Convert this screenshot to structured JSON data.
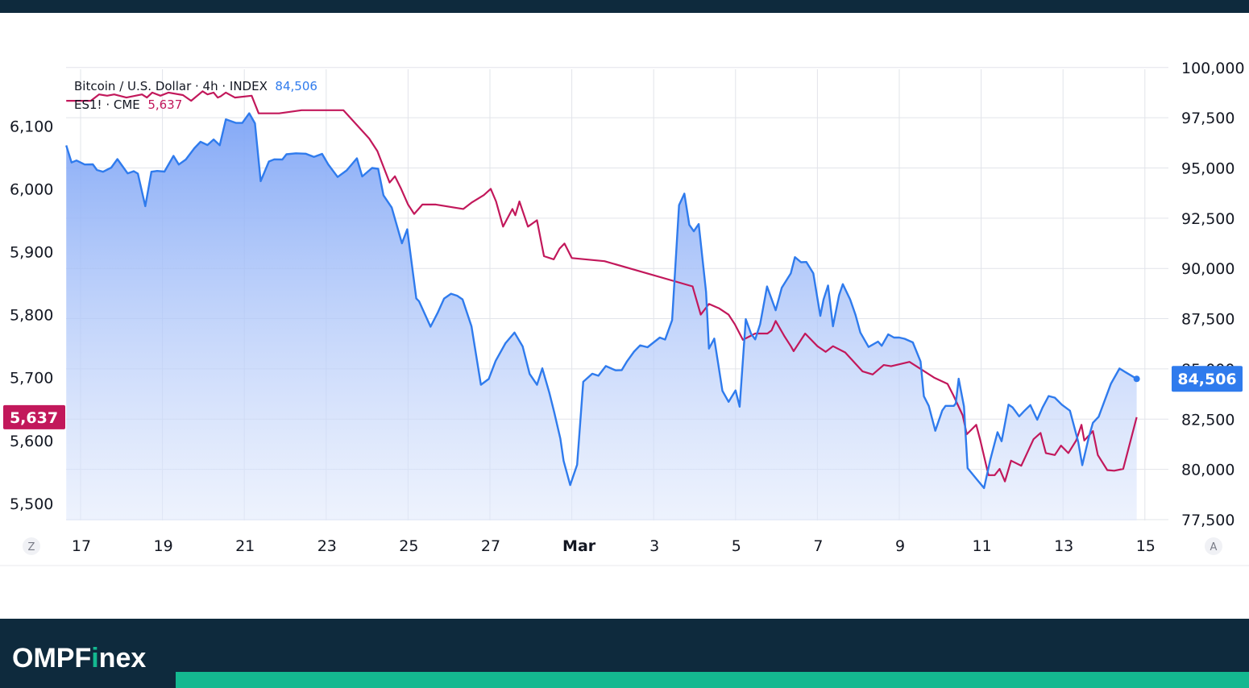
{
  "legend": {
    "btc_label": "Bitcoin / U.S. Dollar · 4h · INDEX",
    "btc_value": "84,506",
    "es_label": "ES1! · CME",
    "es_value": "5,637"
  },
  "badges": {
    "left_value": "5,637",
    "right_value": "84,506"
  },
  "corner_labels": {
    "left": "Z",
    "right": "A"
  },
  "brand": {
    "text_before": "OMPF",
    "text_i": "i",
    "text_after": "nex"
  },
  "colors": {
    "btc_line": "#2f7bed",
    "btc_fill_top": "#7da4f6",
    "es_line": "#c2185b",
    "header_footer": "#0e2a3d",
    "stripe": "#14b890",
    "brand_accent": "#14b890"
  },
  "chart_data": {
    "type": "area",
    "x_axis": {
      "tick_labels": [
        "17",
        "19",
        "21",
        "23",
        "25",
        "27",
        "Mar",
        "3",
        "5",
        "7",
        "9",
        "11",
        "13",
        "15"
      ],
      "ticks_day_index": [
        0,
        2,
        4,
        6,
        8,
        10,
        12,
        14,
        16,
        18,
        20,
        22,
        24,
        26
      ],
      "first_day_index": -0.35,
      "last_day_index": 25.8
    },
    "y_left": {
      "tick_labels": [
        "6,100",
        "6,000",
        "5,900",
        "5,800",
        "5,700",
        "5,600",
        "5,500"
      ],
      "ticks": [
        6100,
        6000,
        5900,
        5800,
        5700,
        5600,
        5500
      ],
      "range": [
        5473,
        6190
      ]
    },
    "y_right": {
      "tick_labels": [
        "100,000",
        "97,500",
        "95,000",
        "92,500",
        "90,000",
        "87,500",
        "85,000",
        "82,500",
        "80,000",
        "77,500"
      ],
      "ticks": [
        100000,
        97500,
        95000,
        92500,
        90000,
        87500,
        85000,
        82500,
        80000,
        77500
      ],
      "range": [
        77460,
        99910
      ]
    },
    "grid": true,
    "series": [
      {
        "name": "Bitcoin / U.S. Dollar · 4h · INDEX",
        "axis": "right",
        "style": "area",
        "x": [
          -0.35,
          -0.22,
          -0.1,
          0.1,
          0.3,
          0.4,
          0.55,
          0.75,
          0.9,
          1.15,
          1.3,
          1.4,
          1.58,
          1.73,
          1.87,
          2.05,
          2.27,
          2.4,
          2.57,
          2.78,
          2.93,
          3.1,
          3.25,
          3.4,
          3.55,
          3.8,
          3.95,
          4.12,
          4.26,
          4.4,
          4.6,
          4.73,
          4.93,
          5.03,
          5.26,
          5.5,
          5.7,
          5.9,
          6.05,
          6.28,
          6.5,
          6.75,
          6.88,
          7.12,
          7.27,
          7.4,
          7.6,
          7.85,
          7.98,
          8.2,
          8.27,
          8.55,
          8.72,
          8.88,
          9.05,
          9.2,
          9.33,
          9.55,
          9.78,
          9.97,
          10.14,
          10.38,
          10.6,
          10.8,
          10.97,
          11.15,
          11.28,
          11.45,
          11.57,
          11.72,
          11.8,
          11.96,
          12.13,
          12.28,
          12.5,
          12.65,
          12.83,
          13.07,
          13.22,
          13.35,
          13.52,
          13.67,
          13.85,
          14.15,
          14.28,
          14.45,
          14.62,
          14.75,
          14.87,
          14.98,
          15.1,
          15.28,
          15.35,
          15.48,
          15.68,
          15.83,
          16.0,
          16.1,
          16.25,
          16.38,
          16.48,
          16.6,
          16.77,
          16.98,
          17.13,
          17.35,
          17.45,
          17.6,
          17.73,
          17.9,
          18.07,
          18.15,
          18.26,
          18.38,
          18.53,
          18.62,
          18.8,
          18.93,
          19.05,
          19.25,
          19.48,
          19.57,
          19.73,
          19.87,
          20.0,
          20.13,
          20.33,
          20.52,
          20.6,
          20.72,
          20.88,
          21.05,
          21.13,
          21.33,
          21.38,
          21.45,
          21.58,
          21.67,
          21.9,
          22.07,
          22.22,
          22.4,
          22.5,
          22.67,
          22.77,
          22.93,
          23.05,
          23.2,
          23.37,
          23.5,
          23.65,
          23.8,
          23.97,
          24.17,
          24.37,
          24.47,
          24.63,
          24.73,
          24.87,
          25.0,
          25.17,
          25.38,
          25.55,
          25.8
        ],
        "values": [
          96120,
          95270,
          95370,
          95170,
          95180,
          94900,
          94810,
          95020,
          95440,
          94730,
          94840,
          94720,
          93100,
          94810,
          94850,
          94820,
          95600,
          95170,
          95420,
          95980,
          96300,
          96140,
          96420,
          96130,
          97420,
          97240,
          97240,
          97720,
          97220,
          94340,
          95320,
          95430,
          95420,
          95680,
          95730,
          95710,
          95550,
          95700,
          95180,
          94550,
          94880,
          95480,
          94580,
          95000,
          94960,
          93640,
          93030,
          91250,
          91950,
          88510,
          88360,
          87100,
          87780,
          88500,
          88740,
          88640,
          88460,
          87120,
          84210,
          84500,
          85400,
          86280,
          86810,
          86120,
          84750,
          84210,
          85030,
          83820,
          82840,
          81530,
          80430,
          79220,
          80230,
          84360,
          84760,
          84660,
          85140,
          84930,
          84940,
          85380,
          85860,
          86170,
          86080,
          86560,
          86460,
          87430,
          93150,
          93720,
          92170,
          91850,
          92210,
          88840,
          86010,
          86510,
          83910,
          83360,
          83930,
          83120,
          87480,
          86750,
          86470,
          87220,
          89100,
          87920,
          89040,
          89760,
          90560,
          90310,
          90320,
          89760,
          87640,
          88450,
          89150,
          87120,
          88670,
          89220,
          88460,
          87700,
          86810,
          86090,
          86360,
          86150,
          86720,
          86560,
          86560,
          86500,
          86320,
          85370,
          83640,
          83160,
          81920,
          82930,
          83160,
          83160,
          83280,
          84510,
          83130,
          80060,
          79490,
          79070,
          80460,
          81850,
          81400,
          83220,
          83080,
          82640,
          82900,
          83200,
          82470,
          83080,
          83650,
          83570,
          83220,
          82920,
          81380,
          80210,
          81600,
          82320,
          82620,
          83330,
          84260,
          85020,
          84810,
          84506
        ]
      },
      {
        "name": "ES1! · CME",
        "axis": "left",
        "style": "line",
        "x": [
          -0.35,
          0.25,
          0.45,
          0.65,
          0.82,
          1.12,
          1.5,
          1.62,
          1.75,
          1.95,
          2.15,
          2.5,
          2.7,
          2.98,
          3.1,
          3.25,
          3.35,
          3.42,
          3.55,
          3.77,
          4.18,
          4.35,
          4.85,
          5.4,
          6.42,
          7.05,
          7.25,
          7.55,
          7.68,
          7.83,
          8.0,
          8.15,
          8.35,
          8.68,
          9.15,
          9.35,
          9.55,
          9.85,
          10.02,
          10.15,
          10.32,
          10.55,
          10.62,
          10.72,
          10.93,
          11.15,
          11.32,
          11.56,
          11.7,
          11.82,
          12.0,
          12.8,
          14.95,
          15.15,
          15.35,
          15.6,
          15.83,
          15.98,
          16.18,
          16.48,
          16.78,
          16.88,
          16.98,
          17.2,
          17.35,
          17.42,
          17.7,
          18.0,
          18.2,
          18.38,
          18.68,
          19.1,
          19.35,
          19.62,
          19.8,
          20.25,
          20.85,
          21.18,
          21.32,
          21.55,
          21.65,
          21.88,
          21.98,
          22.18,
          22.33,
          22.45,
          22.58,
          22.73,
          22.98,
          23.28,
          23.45,
          23.58,
          23.8,
          23.95,
          24.13,
          24.32,
          24.45,
          24.52,
          24.73,
          24.85,
          25.08,
          25.25,
          25.47,
          25.8
        ],
        "values": [
          6140,
          6140,
          6150,
          6148,
          6150,
          6145,
          6150,
          6145,
          6153,
          6148,
          6153,
          6149,
          6140,
          6155,
          6150,
          6153,
          6145,
          6147,
          6153,
          6145,
          6148,
          6120,
          6120,
          6125,
          6125,
          6080,
          6060,
          6010,
          6020,
          6000,
          5975,
          5960,
          5975,
          5975,
          5970,
          5968,
          5978,
          5990,
          6000,
          5980,
          5940,
          5968,
          5958,
          5980,
          5940,
          5950,
          5893,
          5888,
          5905,
          5913,
          5890,
          5885,
          5845,
          5800,
          5817,
          5810,
          5800,
          5785,
          5760,
          5770,
          5770,
          5775,
          5790,
          5765,
          5750,
          5742,
          5770,
          5750,
          5741,
          5750,
          5740,
          5710,
          5705,
          5720,
          5718,
          5725,
          5700,
          5690,
          5672,
          5640,
          5610,
          5625,
          5600,
          5545,
          5545,
          5555,
          5535,
          5568,
          5560,
          5602,
          5612,
          5580,
          5577,
          5592,
          5580,
          5600,
          5625,
          5600,
          5615,
          5577,
          5553,
          5552,
          5555,
          5637
        ]
      }
    ]
  }
}
